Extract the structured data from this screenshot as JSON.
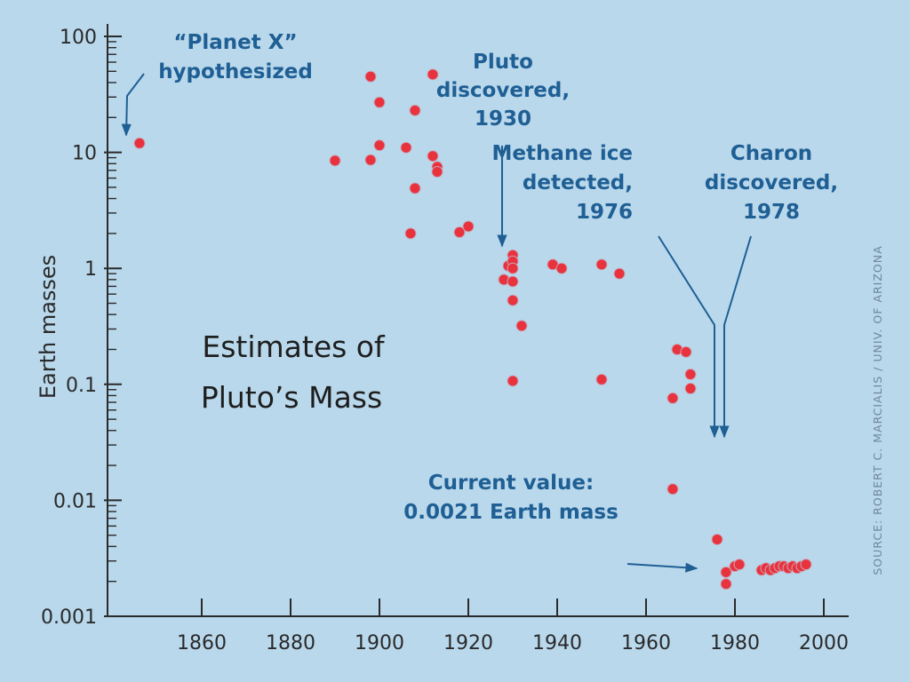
{
  "chart_data": {
    "type": "scatter",
    "title": "Estimates of",
    "title_line2": "Pluto’s Mass",
    "xlabel": "",
    "ylabel": "Earth masses",
    "xlim": [
      1843,
      2007
    ],
    "ylim": [
      0.001,
      100
    ],
    "yscale": "log",
    "grid": false,
    "legend": "none",
    "x_ticks": [
      1860,
      1880,
      1900,
      1920,
      1940,
      1960,
      1980,
      2000
    ],
    "y_ticks": [
      {
        "value": 0.001,
        "label": "0.001"
      },
      {
        "value": 0.01,
        "label": "0.01"
      },
      {
        "value": 0.1,
        "label": "0.1"
      },
      {
        "value": 1,
        "label": "1"
      },
      {
        "value": 10,
        "label": "10"
      },
      {
        "value": 100,
        "label": "100"
      }
    ],
    "series": [
      {
        "marker_color": "#e8323e",
        "points": [
          [
            1846,
            12
          ],
          [
            1890,
            8.5
          ],
          [
            1898,
            45
          ],
          [
            1898,
            8.6
          ],
          [
            1900,
            27
          ],
          [
            1900,
            11.5
          ],
          [
            1906,
            11
          ],
          [
            1907,
            2.0
          ],
          [
            1908,
            23
          ],
          [
            1908,
            4.9
          ],
          [
            1912,
            47
          ],
          [
            1912,
            9.3
          ],
          [
            1913,
            7.5
          ],
          [
            1913,
            6.8
          ],
          [
            1918,
            2.05
          ],
          [
            1920,
            2.3
          ],
          [
            1928,
            0.8
          ],
          [
            1929,
            1.05
          ],
          [
            1930,
            1.3
          ],
          [
            1930,
            1.15
          ],
          [
            1930,
            1.0
          ],
          [
            1930,
            0.77
          ],
          [
            1930,
            0.53
          ],
          [
            1930,
            0.107
          ],
          [
            1932,
            0.32
          ],
          [
            1939,
            1.08
          ],
          [
            1941,
            1.0
          ],
          [
            1950,
            1.08
          ],
          [
            1950,
            0.11
          ],
          [
            1954,
            0.9
          ],
          [
            1966,
            0.076
          ],
          [
            1966,
            0.0125
          ],
          [
            1967,
            0.2
          ],
          [
            1969,
            0.19
          ],
          [
            1970,
            0.122
          ],
          [
            1970,
            0.092
          ],
          [
            1976,
            0.0046
          ],
          [
            1978,
            0.0024
          ],
          [
            1978,
            0.0019
          ],
          [
            1980,
            0.0027
          ],
          [
            1981,
            0.0028
          ],
          [
            1986,
            0.0025
          ],
          [
            1987,
            0.0026
          ],
          [
            1988,
            0.0025
          ],
          [
            1989,
            0.0026
          ],
          [
            1990,
            0.0027
          ],
          [
            1991,
            0.0027
          ],
          [
            1992,
            0.0026
          ],
          [
            1993,
            0.0027
          ],
          [
            1994,
            0.0026
          ],
          [
            1995,
            0.0027
          ],
          [
            1996,
            0.0028
          ]
        ]
      }
    ],
    "annotations": [
      {
        "lines": [
          "“Planet X”",
          "hypothesized"
        ],
        "arrow_to": [
          1846,
          12
        ]
      },
      {
        "lines": [
          "Pluto",
          "discovered,",
          "1930"
        ],
        "arrow_to": [
          1930,
          1.4
        ]
      },
      {
        "lines": [
          "Methane ice",
          "detected,",
          "1976"
        ],
        "arrow_to": [
          1976,
          0.0035
        ]
      },
      {
        "lines": [
          "Charon",
          "discovered,",
          "1978"
        ],
        "arrow_to": [
          1978,
          0.0035
        ]
      },
      {
        "lines": [
          "Current value:",
          "0.0021 Earth mass"
        ],
        "arrow_to": [
          1975,
          0.0023
        ]
      }
    ],
    "credit": "SOURCE: ROBERT C. MARCIALIS / UNIV. OF ARIZONA"
  }
}
